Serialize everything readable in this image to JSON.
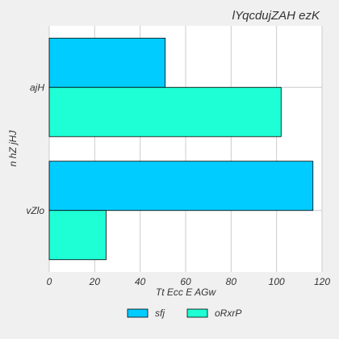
{
  "chart_data": {
    "type": "bar",
    "orientation": "horizontal",
    "title": "lYqcdujZAH ezK",
    "xlabel": "Tt Ecc E AGw",
    "ylabel": "n hZ jHJ",
    "categories": [
      "ajH",
      "vZlo"
    ],
    "series": [
      {
        "name": "sfj",
        "values": [
          51,
          116
        ],
        "color": "#00ccff"
      },
      {
        "name": "oRxrP",
        "values": [
          102,
          25
        ],
        "color": "#1effd6"
      }
    ],
    "xlim": [
      0,
      120
    ],
    "xticks": [
      "0",
      "20",
      "40",
      "60",
      "80",
      "100",
      "120"
    ],
    "grid": true,
    "legend_position": "bottom-center"
  }
}
